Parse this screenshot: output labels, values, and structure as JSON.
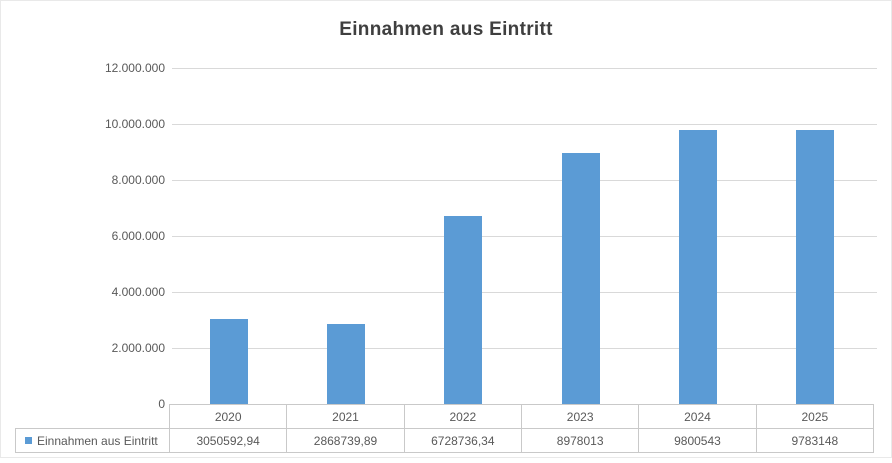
{
  "chart_data": {
    "type": "bar",
    "title": "Einnahmen aus Eintritt",
    "categories": [
      "2020",
      "2021",
      "2022",
      "2023",
      "2024",
      "2025"
    ],
    "series": [
      {
        "name": "Einnahmen aus Eintritt",
        "values": [
          3050592.94,
          2868739.89,
          6728736.34,
          8978013,
          9800543,
          9783148
        ],
        "value_labels": [
          "3050592,94",
          "2868739,89",
          "6728736,34",
          "8978013",
          "9800543",
          "9783148"
        ],
        "color": "#5B9BD5"
      }
    ],
    "y_ticks": [
      "12.000.000",
      "10.000.000",
      "8.000.000",
      "6.000.000",
      "4.000.000",
      "2.000.000",
      "0"
    ],
    "ylim": [
      0,
      12000000
    ],
    "xlabel": "",
    "ylabel": "",
    "grid": true,
    "legend_position": "data-table-left",
    "data_table_shown": true
  },
  "colors": {
    "bar": "#5B9BD5",
    "gridline": "#D9D9D9",
    "table_border": "#C9C9C9",
    "axis_text": "#595959",
    "title_text": "#3F3F3F"
  }
}
